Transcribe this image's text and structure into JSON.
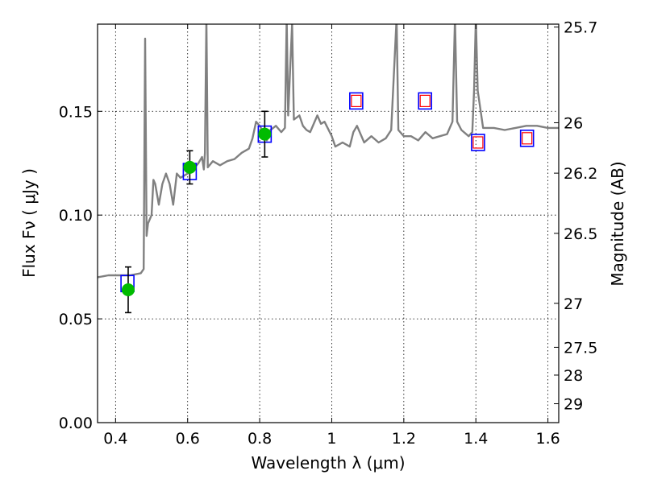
{
  "chart_data": {
    "type": "scatter",
    "xlabel": "Wavelength  λ (μm)",
    "ylabel": "Flux  Fν  ( μJy )",
    "y2label": "Magnitude (AB)",
    "xlim": [
      0.35,
      1.63
    ],
    "ylim": [
      0.0,
      0.192
    ],
    "grid": true,
    "x_ticks": [
      0.4,
      0.6,
      0.8,
      1.0,
      1.2,
      1.4,
      1.6
    ],
    "x_tick_labels": [
      "0.4",
      "0.6",
      "0.8",
      "1",
      "1.2",
      "1.4",
      "1.6"
    ],
    "y_ticks": [
      0.0,
      0.05,
      0.1,
      0.15
    ],
    "y_tick_labels": [
      "0.00",
      "0.05",
      "0.10",
      "0.15"
    ],
    "y2_ticks": [
      {
        "label": "25.7",
        "flux": 0.1906
      },
      {
        "label": "26",
        "flux": 0.1445
      },
      {
        "label": "26.2",
        "flux": 0.1202
      },
      {
        "label": "26.5",
        "flux": 0.0912
      },
      {
        "label": "27",
        "flux": 0.0575
      },
      {
        "label": "27.5",
        "flux": 0.0363
      },
      {
        "label": "28",
        "flux": 0.0229
      },
      {
        "label": "29",
        "flux": 0.0091
      }
    ],
    "colors": {
      "spectrum": "#808080",
      "model_box": "#0000ff",
      "upper_limit": "#ff0000",
      "measured": "#00bb00",
      "errorbar": "#000000"
    },
    "series": [
      {
        "type": "line",
        "points": [
          [
            0.35,
            0.07
          ],
          [
            0.38,
            0.071
          ],
          [
            0.41,
            0.071
          ],
          [
            0.44,
            0.071
          ],
          [
            0.47,
            0.072
          ],
          [
            0.478,
            0.074
          ],
          [
            0.482,
            0.185
          ],
          [
            0.486,
            0.09
          ],
          [
            0.49,
            0.096
          ],
          [
            0.5,
            0.1
          ],
          [
            0.505,
            0.117
          ],
          [
            0.51,
            0.115
          ],
          [
            0.52,
            0.105
          ],
          [
            0.53,
            0.115
          ],
          [
            0.54,
            0.12
          ],
          [
            0.55,
            0.115
          ],
          [
            0.56,
            0.105
          ],
          [
            0.57,
            0.12
          ],
          [
            0.58,
            0.118
          ],
          [
            0.6,
            0.12
          ],
          [
            0.62,
            0.123
          ],
          [
            0.63,
            0.125
          ],
          [
            0.64,
            0.128
          ],
          [
            0.645,
            0.122
          ],
          [
            0.648,
            0.13
          ],
          [
            0.652,
            0.195
          ],
          [
            0.656,
            0.123
          ],
          [
            0.67,
            0.126
          ],
          [
            0.69,
            0.124
          ],
          [
            0.71,
            0.126
          ],
          [
            0.73,
            0.127
          ],
          [
            0.75,
            0.13
          ],
          [
            0.77,
            0.132
          ],
          [
            0.78,
            0.137
          ],
          [
            0.79,
            0.145
          ],
          [
            0.8,
            0.143
          ],
          [
            0.81,
            0.14
          ],
          [
            0.82,
            0.136
          ],
          [
            0.83,
            0.141
          ],
          [
            0.845,
            0.143
          ],
          [
            0.86,
            0.14
          ],
          [
            0.87,
            0.142
          ],
          [
            0.875,
            0.195
          ],
          [
            0.879,
            0.148
          ],
          [
            0.89,
            0.192
          ],
          [
            0.895,
            0.146
          ],
          [
            0.91,
            0.148
          ],
          [
            0.92,
            0.143
          ],
          [
            0.93,
            0.141
          ],
          [
            0.94,
            0.14
          ],
          [
            0.96,
            0.148
          ],
          [
            0.97,
            0.144
          ],
          [
            0.98,
            0.145
          ],
          [
            1.0,
            0.138
          ],
          [
            1.01,
            0.133
          ],
          [
            1.03,
            0.135
          ],
          [
            1.05,
            0.133
          ],
          [
            1.06,
            0.14
          ],
          [
            1.07,
            0.143
          ],
          [
            1.09,
            0.135
          ],
          [
            1.11,
            0.138
          ],
          [
            1.13,
            0.135
          ],
          [
            1.15,
            0.137
          ],
          [
            1.165,
            0.141
          ],
          [
            1.18,
            0.195
          ],
          [
            1.185,
            0.141
          ],
          [
            1.2,
            0.138
          ],
          [
            1.22,
            0.138
          ],
          [
            1.24,
            0.136
          ],
          [
            1.26,
            0.14
          ],
          [
            1.28,
            0.137
          ],
          [
            1.3,
            0.138
          ],
          [
            1.32,
            0.139
          ],
          [
            1.335,
            0.145
          ],
          [
            1.342,
            0.195
          ],
          [
            1.348,
            0.145
          ],
          [
            1.36,
            0.141
          ],
          [
            1.38,
            0.138
          ],
          [
            1.39,
            0.14
          ],
          [
            1.395,
            0.16
          ],
          [
            1.4,
            0.195
          ],
          [
            1.405,
            0.16
          ],
          [
            1.42,
            0.142
          ],
          [
            1.45,
            0.142
          ],
          [
            1.48,
            0.141
          ],
          [
            1.51,
            0.142
          ],
          [
            1.54,
            0.143
          ],
          [
            1.57,
            0.143
          ],
          [
            1.6,
            0.142
          ],
          [
            1.63,
            0.142
          ]
        ]
      },
      {
        "type": "model_photometry",
        "points": [
          {
            "x": 0.433,
            "y": 0.067
          },
          {
            "x": 0.606,
            "y": 0.121
          },
          {
            "x": 0.814,
            "y": 0.139
          },
          {
            "x": 1.068,
            "y": 0.155
          },
          {
            "x": 1.259,
            "y": 0.155
          },
          {
            "x": 1.406,
            "y": 0.135
          },
          {
            "x": 1.542,
            "y": 0.137
          }
        ]
      },
      {
        "type": "upper_limit",
        "points": [
          {
            "x": 1.068,
            "y": 0.155
          },
          {
            "x": 1.259,
            "y": 0.155
          },
          {
            "x": 1.406,
            "y": 0.135
          },
          {
            "x": 1.542,
            "y": 0.137
          }
        ]
      },
      {
        "type": "measured",
        "points": [
          {
            "x": 0.435,
            "y": 0.064,
            "err": 0.011
          },
          {
            "x": 0.606,
            "y": 0.123,
            "err": 0.008
          },
          {
            "x": 0.814,
            "y": 0.139,
            "err": 0.011
          }
        ]
      }
    ]
  }
}
